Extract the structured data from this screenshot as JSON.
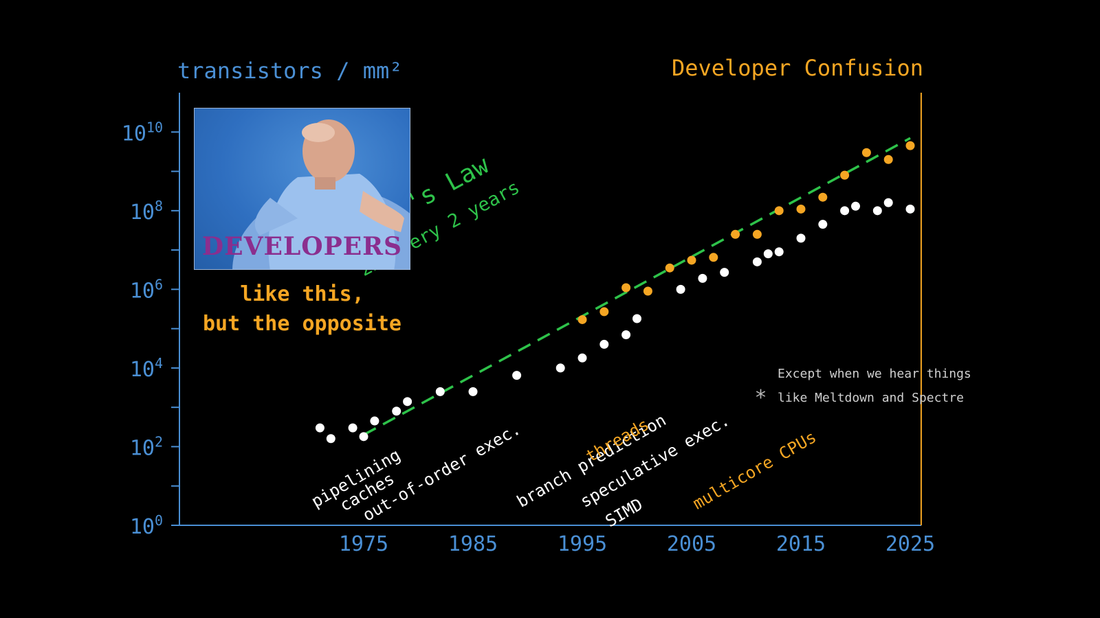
{
  "chart_data": {
    "type": "scatter",
    "title": "Developer Confusion",
    "ylabel": "transistors / mm²",
    "yscale": "log10",
    "ylim": [
      1,
      10000000000
    ],
    "xlim": [
      1958,
      2026
    ],
    "x_ticks": [
      1975,
      1985,
      1995,
      2005,
      2015,
      2025
    ],
    "y_ticks": [
      {
        "exp": 0,
        "label": "10",
        "sup": "0"
      },
      {
        "exp": 2,
        "label": "10",
        "sup": "2"
      },
      {
        "exp": 4,
        "label": "10",
        "sup": "4"
      },
      {
        "exp": 6,
        "label": "10",
        "sup": "6"
      },
      {
        "exp": 8,
        "label": "10",
        "sup": "8"
      },
      {
        "exp": 10,
        "label": "10",
        "sup": "10"
      }
    ],
    "series": [
      {
        "color": "#ffffff",
        "points": [
          [
            1971,
            300
          ],
          [
            1972,
            160
          ],
          [
            1974,
            300
          ],
          [
            1975,
            180
          ],
          [
            1976,
            450
          ],
          [
            1978,
            800
          ],
          [
            1979,
            1400
          ],
          [
            1982,
            2500
          ],
          [
            1985,
            2500
          ],
          [
            1989,
            6500
          ],
          [
            1993,
            10000
          ],
          [
            1995,
            18000
          ],
          [
            1997,
            40000
          ],
          [
            1999,
            70000
          ],
          [
            2000,
            180000
          ],
          [
            2004,
            1000000
          ],
          [
            2006,
            1900000
          ],
          [
            2008,
            2700000
          ],
          [
            2011,
            5000000
          ],
          [
            2012,
            8000000
          ],
          [
            2013,
            9000000
          ],
          [
            2015,
            20000000
          ],
          [
            2017,
            45000000
          ],
          [
            2019,
            100000000
          ],
          [
            2020,
            130000000
          ],
          [
            2022,
            100000000
          ],
          [
            2023,
            160000000
          ],
          [
            2025,
            110000000
          ]
        ]
      },
      {
        "color": "#f5a623",
        "points": [
          [
            1995,
            170000
          ],
          [
            1997,
            270000
          ],
          [
            1999,
            1100000
          ],
          [
            2001,
            900000
          ],
          [
            2003,
            3500000
          ],
          [
            2005,
            5500000
          ],
          [
            2007,
            6500000
          ],
          [
            2009,
            25000000
          ],
          [
            2011,
            25000000
          ],
          [
            2013,
            100000000
          ],
          [
            2015,
            110000000
          ],
          [
            2017,
            220000000
          ],
          [
            2019,
            800000000
          ],
          [
            2021,
            3000000000
          ],
          [
            2023,
            2000000000
          ],
          [
            2025,
            4500000000
          ]
        ]
      }
    ],
    "trend": {
      "color": "#2ec24a",
      "style": "dashed",
      "label": "Moore's Law",
      "sublabel": "2x every 2 years",
      "from": [
        1975,
        200
      ],
      "to": [
        2025,
        7000000000
      ]
    },
    "limit_line": {
      "x": 2026,
      "color": "#f5a623"
    },
    "annotations": [
      {
        "text": "pipelining",
        "x": 1970.6,
        "exp": 0.55,
        "color": "#ffffff"
      },
      {
        "text": "caches",
        "x": 1973.2,
        "exp": 0.45,
        "color": "#ffffff"
      },
      {
        "text": "out-of-order exec.",
        "x": 1975.3,
        "exp": 0.2,
        "color": "#ffffff"
      },
      {
        "text": "branch prediction",
        "x": 1989.4,
        "exp": 0.55,
        "color": "#ffffff"
      },
      {
        "text": "threads",
        "x": 1995.7,
        "exp": 1.7,
        "color": "#f5a623"
      },
      {
        "text": "speculative exec.",
        "x": 1995.2,
        "exp": 0.55,
        "color": "#ffffff"
      },
      {
        "text": "SIMD",
        "x": 1997.5,
        "exp": 0.05,
        "color": "#ffffff"
      },
      {
        "text": "multicore CPUs",
        "x": 2005.5,
        "exp": 0.5,
        "color": "#f5a623"
      }
    ]
  },
  "photo": {
    "caption": "DEVELOPERS"
  },
  "tagline": {
    "line1": "like this,",
    "line2": "but the opposite"
  },
  "footnote": {
    "star": "*",
    "line1": "Except when we hear things",
    "line2": "like Meltdown and Spectre"
  },
  "colors": {
    "axis": "#4a8fd4",
    "white_series": "#ffffff",
    "orange_series": "#f5a623",
    "trend": "#2ec24a"
  }
}
